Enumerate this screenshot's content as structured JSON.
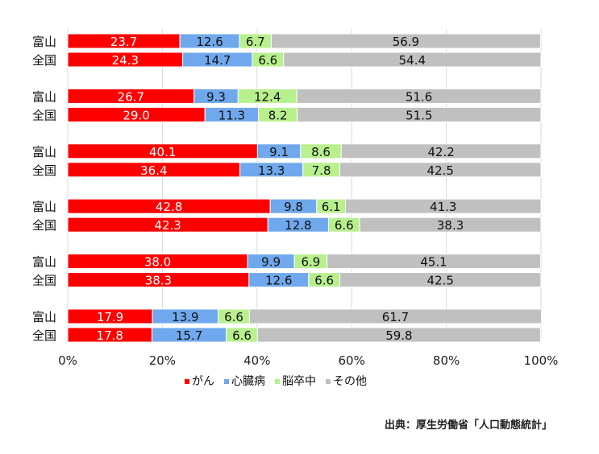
{
  "chart_data": {
    "type": "stacked-horizontal-bar",
    "xlim": [
      0,
      100
    ],
    "x_ticks": [
      "0%",
      "20%",
      "40%",
      "60%",
      "80%",
      "100%"
    ],
    "grid": true,
    "legend_position": "bottom",
    "series": [
      {
        "name": "がん",
        "color": "#ff0000"
      },
      {
        "name": "心臓病",
        "color": "#6fa8ec"
      },
      {
        "name": "脳卒中",
        "color": "#b8f08e"
      },
      {
        "name": "その他",
        "color": "#c0c0c0"
      }
    ],
    "groups": [
      {
        "rows": [
          {
            "label": "富山",
            "values": [
              23.7,
              12.6,
              6.7,
              56.9
            ]
          },
          {
            "label": "全国",
            "values": [
              24.3,
              14.7,
              6.6,
              54.4
            ]
          }
        ]
      },
      {
        "rows": [
          {
            "label": "富山",
            "values": [
              26.7,
              9.3,
              12.4,
              51.6
            ]
          },
          {
            "label": "全国",
            "values": [
              29.0,
              11.3,
              8.2,
              51.5
            ]
          }
        ]
      },
      {
        "rows": [
          {
            "label": "富山",
            "values": [
              40.1,
              9.1,
              8.6,
              42.2
            ]
          },
          {
            "label": "全国",
            "values": [
              36.4,
              13.3,
              7.8,
              42.5
            ]
          }
        ]
      },
      {
        "rows": [
          {
            "label": "富山",
            "values": [
              42.8,
              9.8,
              6.1,
              41.3
            ]
          },
          {
            "label": "全国",
            "values": [
              42.3,
              12.8,
              6.6,
              38.3
            ]
          }
        ]
      },
      {
        "rows": [
          {
            "label": "富山",
            "values": [
              38.0,
              9.9,
              6.9,
              45.1
            ]
          },
          {
            "label": "全国",
            "values": [
              38.3,
              12.6,
              6.6,
              42.5
            ]
          }
        ]
      },
      {
        "rows": [
          {
            "label": "富山",
            "values": [
              17.9,
              13.9,
              6.6,
              61.7
            ]
          },
          {
            "label": "全国",
            "values": [
              17.8,
              15.7,
              6.6,
              59.8
            ]
          }
        ]
      }
    ]
  },
  "source": "出典：厚生労働省「人口動態統計」"
}
